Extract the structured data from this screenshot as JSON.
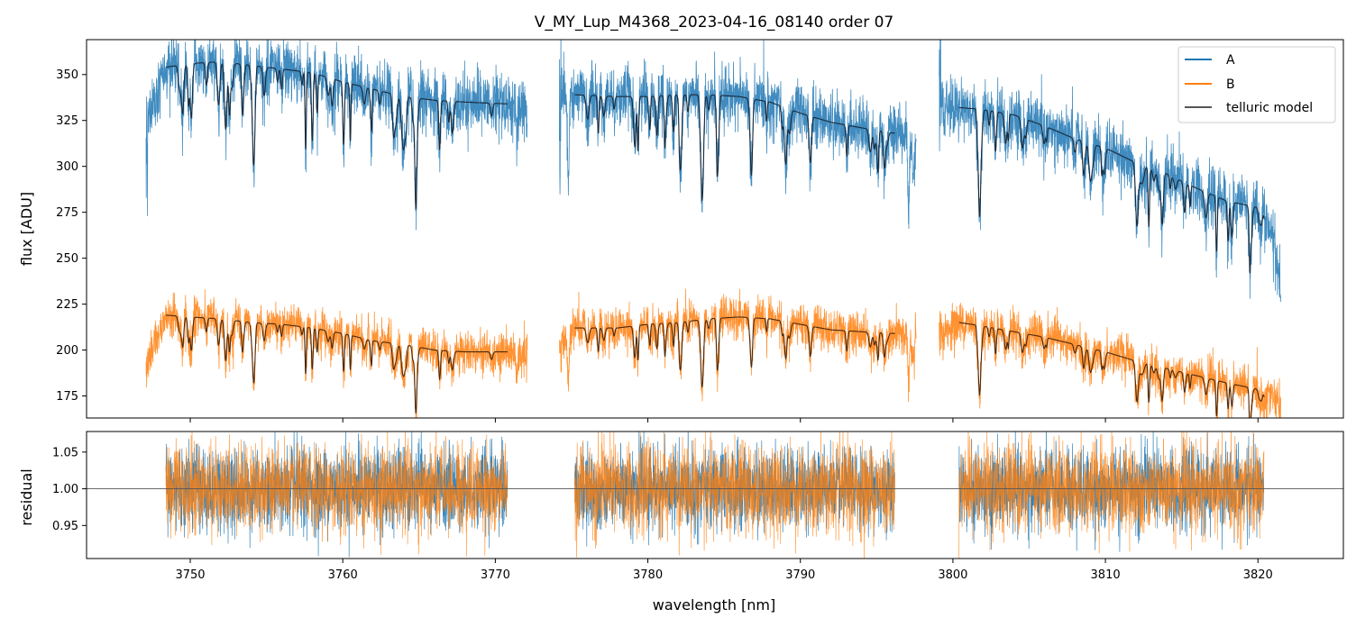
{
  "chart_data": {
    "type": "line",
    "title": "V_MY_Lup_M4368_2023-04-16_08140  order 07",
    "xlabel": "wavelength [nm]",
    "xlim": [
      3743.2,
      3825.6
    ],
    "xticks": [
      3750,
      3760,
      3770,
      3780,
      3790,
      3800,
      3810,
      3820
    ],
    "xtick_labels": [
      "3750",
      "3760",
      "3770",
      "3780",
      "3790",
      "3800",
      "3810",
      "3820"
    ],
    "top_panel": {
      "ylabel": "flux [ADU]",
      "ylim": [
        163,
        369
      ],
      "yticks": [
        175,
        200,
        225,
        250,
        275,
        300,
        325,
        350
      ],
      "ytick_labels": [
        "175",
        "200",
        "225",
        "250",
        "275",
        "300",
        "325",
        "350"
      ],
      "segments": [
        {
          "x_range": [
            3747.1,
            3772.1
          ],
          "model_range": [
            3748.4,
            3770.8
          ],
          "A_x": [
            3747.1,
            3748.4,
            3750.0,
            3752.0,
            3754.0,
            3756.0,
            3758.0,
            3760.0,
            3762.0,
            3764.0,
            3766.0,
            3768.0,
            3770.8,
            3772.1
          ],
          "A_y": [
            320,
            354,
            356,
            357,
            355,
            353,
            351,
            346,
            342,
            338,
            336,
            335,
            334,
            328
          ],
          "B_x": [
            3747.1,
            3748.4,
            3750.0,
            3752.0,
            3754.0,
            3756.0,
            3758.0,
            3760.0,
            3762.0,
            3764.0,
            3766.0,
            3768.0,
            3770.8,
            3772.1
          ],
          "B_y": [
            190,
            219,
            218,
            217,
            215,
            214,
            212,
            209,
            205,
            203,
            200,
            199,
            199,
            196
          ]
        },
        {
          "x_range": [
            3774.2,
            3797.6
          ],
          "model_range": [
            3775.2,
            3796.2
          ],
          "A_x": [
            3774.2,
            3775.2,
            3778.0,
            3780.0,
            3782.0,
            3784.0,
            3786.0,
            3788.0,
            3790.0,
            3792.0,
            3794.0,
            3796.2,
            3797.6
          ],
          "A_y": [
            335,
            339,
            338,
            338,
            339,
            339,
            338,
            335,
            329,
            324,
            321,
            318,
            315
          ],
          "B_x": [
            3774.2,
            3775.2,
            3778.0,
            3780.0,
            3782.0,
            3784.0,
            3786.0,
            3788.0,
            3790.0,
            3792.0,
            3794.0,
            3796.2,
            3797.6
          ],
          "B_y": [
            205,
            212,
            212,
            214,
            215,
            217,
            218,
            217,
            214,
            211,
            210,
            209,
            208
          ]
        },
        {
          "x_range": [
            3799.1,
            3821.5
          ],
          "model_range": [
            3800.4,
            3820.4
          ],
          "A_x": [
            3799.1,
            3800.4,
            3802.0,
            3804.0,
            3806.0,
            3808.0,
            3810.0,
            3812.0,
            3814.0,
            3816.0,
            3818.0,
            3820.4,
            3821.0,
            3821.5
          ],
          "A_y": [
            335,
            332,
            331,
            328,
            322,
            315,
            310,
            302,
            296,
            288,
            281,
            277,
            260,
            232
          ],
          "B_x": [
            3799.1,
            3800.4,
            3802.0,
            3804.0,
            3806.0,
            3808.0,
            3810.0,
            3812.0,
            3814.0,
            3816.0,
            3818.0,
            3820.4,
            3821.5
          ],
          "B_y": [
            210,
            215,
            213,
            210,
            207,
            203,
            199,
            194,
            190,
            186,
            182,
            178,
            170
          ]
        }
      ]
    },
    "bottom_panel": {
      "ylabel": "residual",
      "ylim": [
        0.905,
        1.078
      ],
      "yticks": [
        0.95,
        1.0,
        1.05
      ],
      "ytick_labels": [
        "0.95",
        "1.00",
        "1.05"
      ],
      "reference_line": 1.0,
      "segments": [
        [
          3748.4,
          3770.8
        ],
        [
          3775.2,
          3796.2
        ],
        [
          3800.4,
          3820.4
        ]
      ],
      "scatter_amplitude": 0.05
    },
    "series": [
      {
        "name": "A",
        "color": "#1f77b4"
      },
      {
        "name": "B",
        "color": "#ff7f0e"
      },
      {
        "name": "telluric model",
        "color": "#555555"
      }
    ],
    "legend": {
      "location": "top-right",
      "labels": [
        "A",
        "B",
        "telluric model"
      ]
    }
  }
}
